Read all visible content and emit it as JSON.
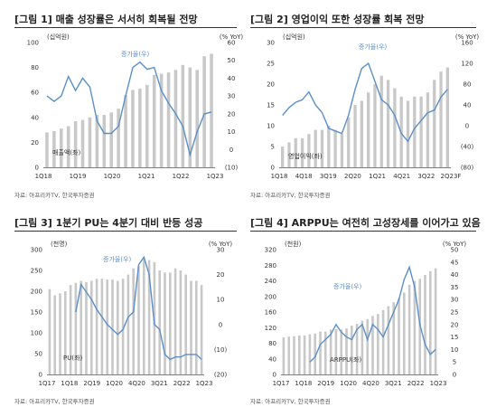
{
  "source_text": "자료: 아프리카TV, 한국투자증권",
  "chart_data": [
    {
      "type": "bar+line",
      "title": "[그림 1] 매출 성장률은 서서히 회복될 전망",
      "left_unit": "(십억원)",
      "right_unit": "(% YoY)",
      "left_ticks": [
        "0",
        "20",
        "40",
        "60",
        "80",
        "100"
      ],
      "right_ticks": [
        "(10)",
        "0",
        "10",
        "20",
        "30",
        "40",
        "50",
        "60"
      ],
      "ylim_left": [
        0,
        100
      ],
      "ylim_right": [
        -10,
        60
      ],
      "x_labels": [
        "1Q18",
        "1Q19",
        "1Q20",
        "1Q21",
        "1Q22",
        "1Q23"
      ],
      "bar_series_name": "매출액(좌)",
      "line_series_name": "증가율(우)",
      "bars": [
        28,
        29,
        31,
        33,
        37,
        38,
        40,
        42,
        42,
        44,
        47,
        58,
        62,
        63,
        66,
        74,
        75,
        76,
        78,
        82,
        80,
        78,
        89,
        91
      ],
      "line": [
        30,
        27,
        30,
        41,
        33,
        40,
        35,
        16,
        9,
        9,
        13,
        30,
        46,
        49,
        45,
        46,
        33,
        26,
        20,
        13,
        -3,
        10,
        20,
        21
      ]
    },
    {
      "type": "bar+line",
      "title": "[그림 2] 영업이익 또한 성장률 회복 전망",
      "left_unit": "(십억원)",
      "right_unit": "(% YoY)",
      "left_ticks": [
        "0",
        "5",
        "10",
        "15",
        "20",
        "25",
        "30"
      ],
      "right_ticks": [
        "(80)",
        "(40)",
        "0",
        "40",
        "80",
        "120",
        "160"
      ],
      "ylim_left": [
        0,
        30
      ],
      "ylim_right": [
        -80,
        160
      ],
      "x_labels": [
        "1Q18",
        "4Q18",
        "3Q19",
        "2Q20",
        "1Q21",
        "4Q21",
        "3Q22",
        "2Q23F"
      ],
      "bar_series_name": "영업이익(좌)",
      "line_series_name": "증가율(우)",
      "bars": [
        5,
        6,
        7,
        7,
        8,
        9,
        9,
        10,
        9,
        8,
        12,
        15,
        16,
        18,
        20,
        22,
        21,
        19,
        17,
        16,
        17,
        17,
        18,
        21,
        23,
        24
      ],
      "line": [
        20,
        35,
        45,
        50,
        65,
        40,
        25,
        -5,
        -10,
        -15,
        20,
        70,
        110,
        120,
        85,
        50,
        40,
        20,
        -15,
        -30,
        -5,
        10,
        25,
        30,
        55,
        70
      ]
    },
    {
      "type": "bar+line",
      "title": "[그림 3] 1분기 PU는 4분기 대비 반등 성공",
      "left_unit": "(천명)",
      "right_unit": "(% YoY)",
      "left_ticks": [
        "0",
        "50",
        "100",
        "150",
        "200",
        "250",
        "300"
      ],
      "right_ticks": [
        "(20)",
        "(10)",
        "0",
        "10",
        "20",
        "30"
      ],
      "ylim_left": [
        0,
        300
      ],
      "ylim_right": [
        -20,
        30
      ],
      "x_labels": [
        "1Q17",
        "1Q18",
        "2Q19",
        "1Q20",
        "4Q20",
        "3Q21",
        "2Q22",
        "1Q23"
      ],
      "bar_series_name": "PU(좌)",
      "line_series_name": "증가율(우)",
      "bars": [
        205,
        190,
        195,
        200,
        215,
        220,
        225,
        222,
        225,
        230,
        230,
        228,
        228,
        225,
        230,
        240,
        255,
        260,
        280,
        275,
        270,
        250,
        245,
        245,
        255,
        250,
        240,
        225,
        225,
        215
      ],
      "line": [
        null,
        null,
        null,
        null,
        null,
        5,
        16,
        13,
        10,
        6,
        3,
        0,
        -2,
        -4,
        -2,
        3,
        5,
        24,
        27,
        20,
        0,
        -2,
        -12,
        -14,
        -13,
        -13,
        -12,
        -12,
        -12,
        -14
      ]
    },
    {
      "type": "bar+line",
      "title": "[그림 4] ARPPU는 여전히 고성장세를 이어가고 있음",
      "left_unit": "(천원)",
      "right_unit": "(% YoY)",
      "left_ticks": [
        "0",
        "40",
        "80",
        "120",
        "160",
        "200",
        "240",
        "280",
        "320"
      ],
      "right_ticks": [
        "0",
        "5",
        "10",
        "15",
        "20",
        "25",
        "30",
        "35",
        "40",
        "45",
        "50"
      ],
      "ylim_left": [
        0,
        320
      ],
      "ylim_right": [
        0,
        50
      ],
      "x_labels": [
        "1Q17",
        "1Q18",
        "2Q19",
        "1Q20",
        "4Q20",
        "3Q21",
        "2Q22",
        "1Q23"
      ],
      "bar_series_name": "ARPPU(좌)",
      "line_series_name": "증가율(우)",
      "bars": [
        95,
        97,
        98,
        100,
        100,
        103,
        105,
        110,
        110,
        115,
        116,
        115,
        118,
        125,
        130,
        138,
        142,
        150,
        155,
        165,
        175,
        185,
        195,
        210,
        230,
        240,
        245,
        255,
        265,
        272
      ],
      "line": [
        null,
        null,
        null,
        null,
        null,
        5,
        7,
        12,
        14,
        16,
        20,
        17,
        15,
        14,
        18,
        20,
        14,
        20,
        18,
        15,
        20,
        25,
        30,
        38,
        43,
        35,
        20,
        12,
        8,
        10
      ]
    }
  ]
}
